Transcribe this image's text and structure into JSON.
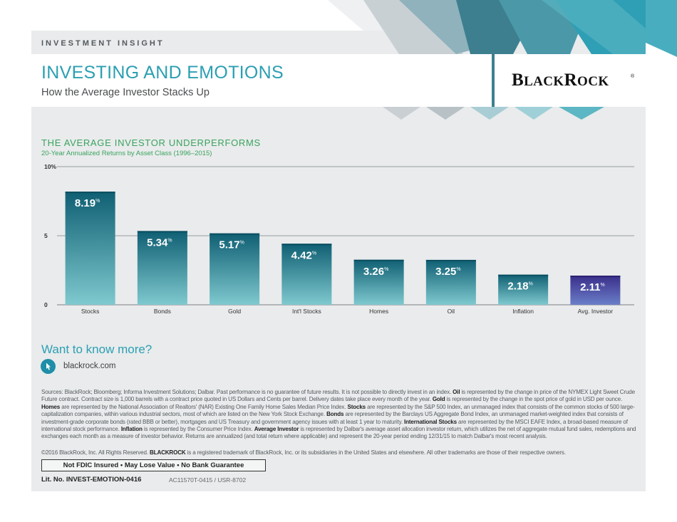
{
  "header": {
    "eyebrow": "INVESTMENT INSIGHT",
    "title": "INVESTING AND EMOTIONS",
    "subtitle": "How the Average Investor Stacks Up",
    "logo_main": "B",
    "logo_small": "LACK",
    "logo_main2": "R",
    "logo_small2": "OCK",
    "logo_reg": "®"
  },
  "colors": {
    "accent_teal": "#2b9fb3",
    "accent_green": "#3aa35e",
    "bar_teal_top": "#0f5f73",
    "bar_teal_bottom": "#7fc9cf",
    "bar_purple_top": "#3a2e8a",
    "bar_purple_bottom": "#6a7fc8"
  },
  "chart_data": {
    "type": "bar",
    "title": "THE AVERAGE INVESTOR UNDERPERFORMS",
    "subtitle": "20-Year Annualized Returns by Asset Class (1996–2015)",
    "categories": [
      "Stocks",
      "Bonds",
      "Gold",
      "Int'l Stocks",
      "Homes",
      "Oil",
      "Inflation",
      "Avg. Investor"
    ],
    "values": [
      8.19,
      5.34,
      5.17,
      4.42,
      3.26,
      3.25,
      2.18,
      2.11
    ],
    "value_labels": [
      "8.19",
      "5.34",
      "5.17",
      "4.42",
      "3.26",
      "3.25",
      "2.18",
      "2.11"
    ],
    "value_unit": "%",
    "highlight_index": 7,
    "ylim": [
      0,
      10
    ],
    "yticks": [
      0,
      5,
      10
    ],
    "ytick_labels": [
      "0",
      "5",
      "10%"
    ],
    "grid": true,
    "xlabel": "",
    "ylabel": ""
  },
  "cta": {
    "title": "Want to know more?",
    "link": "blackrock.com",
    "icon": "mouse-icon"
  },
  "footer": {
    "sources_label": "Sources: BlackRock; Bloomberg; Informa Investment Solutions; Dalbar. Past performance is no guarantee of future results. It is not possible to directly invest in an index.",
    "oil_term": "Oil",
    "oil_text": "is represented by the change in price of the NYMEX Light Sweet Crude Future contract. Contract size is 1,000 barrels with a contract price quoted in US Dollars and Cents per barrel. Delivery dates take place every month of the year.",
    "gold_term": "Gold",
    "gold_text": "is represented by the change in the spot price of gold in USD per ounce.",
    "homes_term": "Homes",
    "homes_text": "are represented by the National Association of Realtors' (NAR) Existing One Family Home Sales Median Price Index.",
    "stocks_term": "Stocks",
    "stocks_text": "are represented by the S&P 500 Index, an unmanaged index that consists of the common stocks of 500 large-capitalization companies, within various industrial sectors, most of which are listed on the New York Stock Exchange.",
    "bonds_term": "Bonds",
    "bonds_text": "are represented by the Barclays US Aggregate Bond Index, an unmanaged market-weighted index that consists of investment-grade corporate bonds (rated BBB or better), mortgages and US Treasury and government agency issues with at least 1 year to maturity.",
    "intl_term": "International Stocks",
    "intl_text": "are represented by the MSCI EAFE Index, a broad-based measure of international stock performance.",
    "inflation_term": "Inflation",
    "inflation_text": "is represented by the Consumer Price Index.",
    "avg_term": "Average Investor",
    "avg_text": "is represented by Dalbar's average asset allocation investor return, which utilizes the net of aggregate mutual fund sales, redemptions and exchanges each month as a measure of investor behavior. Returns are annualized (and total return where applicable) and represent the 20-year period ending 12/31/15 to match Dalbar's most recent analysis.",
    "copyright_pre": "©2016 BlackRock, Inc. All Rights Reserved.",
    "copyright_brand": "BLACKROCK",
    "copyright_post": "is a registered trademark of BlackRock, Inc. or its subsidiaries in the United States and elsewhere. All other trademarks are those of their respective owners.",
    "fdic": "Not FDIC Insured • May Lose Value • No Bank Guarantee",
    "lit_no": "Lit. No. INVEST-EMOTION-0416",
    "ac_code": "AC11570T-0415 / USR-8702"
  }
}
